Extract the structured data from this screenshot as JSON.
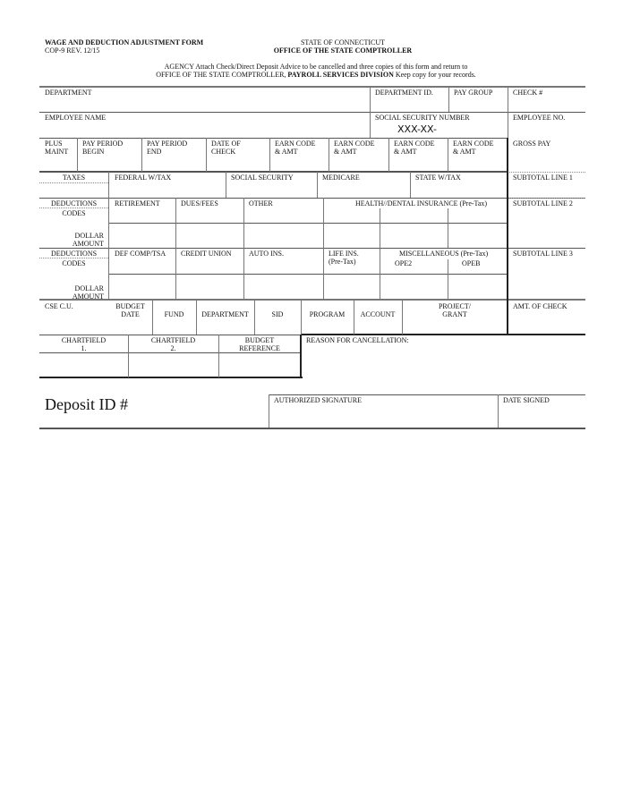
{
  "header": {
    "form_title": "WAGE AND DEDUCTION ADJUSTMENT FORM",
    "form_rev": "COP-9 REV. 12/15",
    "state": "STATE OF CONNECTICUT",
    "office": "OFFICE OF THE STATE COMPTROLLER",
    "instr1": "AGENCY   Attach Check/Direct Deposit  Advice to be cancelled and three copies of this form and return to",
    "instr2a": "OFFICE OF THE STATE COMPTROLLER, ",
    "instr2b": "PAYROLL SERVICES DIVISION",
    "instr2c": "  Keep copy for your records."
  },
  "row1": {
    "department": "DEPARTMENT",
    "department_id": "DEPARTMENT ID.",
    "pay_group": "PAY GROUP",
    "check": "CHECK #"
  },
  "row2": {
    "employee_name": "EMPLOYEE NAME",
    "ssn": "SOCIAL SECURITY NUMBER",
    "ssn_value": "XXX-XX-",
    "employee_no": "EMPLOYEE NO."
  },
  "row3": {
    "plus_maint": [
      "PLUS",
      "MAINT"
    ],
    "pp_begin": [
      "PAY PERIOD",
      "BEGIN"
    ],
    "pp_end": [
      "PAY PERIOD",
      "END"
    ],
    "date_check": [
      "DATE OF",
      "CHECK"
    ],
    "earn1": [
      "EARN CODE",
      "& AMT"
    ],
    "earn2": [
      "EARN CODE",
      "& AMT"
    ],
    "earn3": [
      "EARN CODE",
      "& AMT"
    ],
    "earn4": [
      "EARN CODE",
      "& AMT"
    ],
    "gross_pay": "GROSS PAY"
  },
  "taxes": {
    "label": "TAXES",
    "federal": "FEDERAL W/TAX",
    "social_security": "SOCIAL SECURITY",
    "medicare": "MEDICARE",
    "state": "STATE W/TAX",
    "subtotal": "SUBTOTAL LINE 1"
  },
  "ded1": {
    "label": "DEDUCTIONS",
    "codes": "CODES",
    "dollar": "DOLLAR",
    "amount": "AMOUNT",
    "retirement": "RETIREMENT",
    "dues": "DUES/FEES",
    "other": "OTHER",
    "health": "HEALTH//DENTAL INSURANCE (Pre-Tax)",
    "subtotal": "SUBTOTAL LINE 2"
  },
  "ded2": {
    "label": "DEDUCTIONS",
    "codes": "CODES",
    "dollar": "DOLLAR",
    "amount": "AMOUNT",
    "defcomp": "DEF COMP/TSA",
    "credit_union": "CREDIT UNION",
    "auto": "AUTO INS.",
    "life": [
      "LIFE INS.",
      "(Pre-Tax)"
    ],
    "misc": "MISCELLANEOUS (Pre-Tax)",
    "ope2": "OPE2",
    "opeb": "OPEB",
    "subtotal": "SUBTOTAL LINE 3"
  },
  "cse": {
    "cse_cu": "CSE C.U.",
    "budget_date": [
      "BUDGET",
      "DATE"
    ],
    "fund": "FUND",
    "department": "DEPARTMENT",
    "sid": "SID",
    "program": "PROGRAM",
    "account": "ACCOUNT",
    "project": [
      "PROJECT/",
      "GRANT"
    ],
    "amt_check": "AMT. OF CHECK"
  },
  "chart": {
    "cf1": [
      "CHARTFIELD",
      "1."
    ],
    "cf2": [
      "CHARTFIELD",
      "2."
    ],
    "budget_ref": [
      "BUDGET",
      "REFERENCE"
    ],
    "reason": "REASON FOR CANCELLATION:"
  },
  "footer": {
    "deposit_id": "Deposit ID #",
    "auth_sig": "AUTHORIZED SIGNATURE",
    "date_signed": "DATE SIGNED"
  }
}
